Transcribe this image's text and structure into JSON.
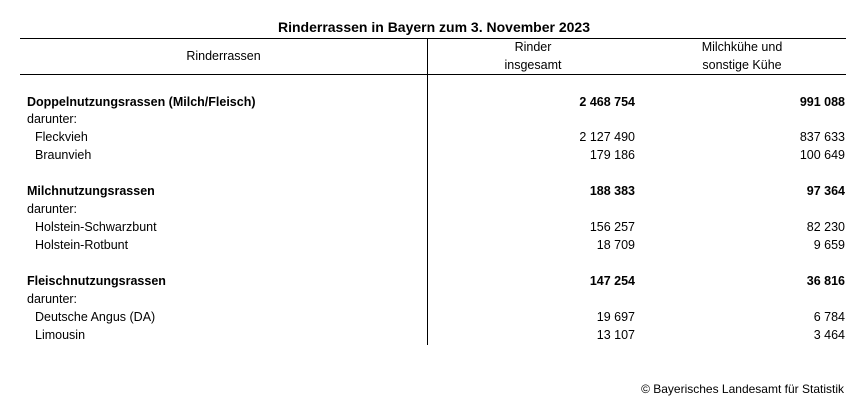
{
  "title": "Rinderrassen in Bayern zum 3. November 2023",
  "header": {
    "col0": "Rinderrassen",
    "col1_line1": "Rinder",
    "col1_line2": "insgesamt",
    "col2_line1": "Milchkühe und",
    "col2_line2": "sonstige Kühe"
  },
  "groups": [
    {
      "label": "Doppelnutzungsrassen (Milch/Fleisch)",
      "total": "2 468 754",
      "cows": "991 088",
      "darunter": "darunter:",
      "items": [
        {
          "label": "Fleckvieh",
          "total": "2 127 490",
          "cows": "837 633"
        },
        {
          "label": "Braunvieh",
          "total": "179 186",
          "cows": "100 649"
        }
      ]
    },
    {
      "label": "Milchnutzungsrassen",
      "total": "188 383",
      "cows": "97 364",
      "darunter": "darunter:",
      "items": [
        {
          "label": "Holstein-Schwarzbunt",
          "total": "156 257",
          "cows": "82 230"
        },
        {
          "label": "Holstein-Rotbunt",
          "total": "18 709",
          "cows": "9 659"
        }
      ]
    },
    {
      "label": "Fleischnutzungsrassen",
      "total": "147 254",
      "cows": "36 816",
      "darunter": "darunter:",
      "items": [
        {
          "label": "Deutsche Angus (DA)",
          "total": "19 697",
          "cows": "6 784"
        },
        {
          "label": "Limousin",
          "total": "13 107",
          "cows": "3 464"
        }
      ]
    }
  ],
  "footer": "© Bayerisches Landesamt für Statistik"
}
